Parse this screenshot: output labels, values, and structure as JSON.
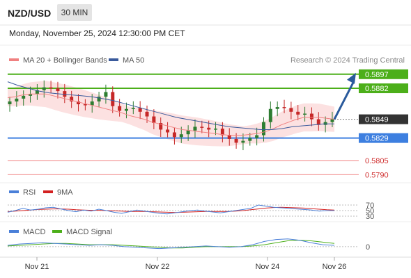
{
  "header": {
    "symbol": "NZD/USD",
    "timeframe": "30 MIN",
    "datetime": "Monday, November 25, 2024 12:30:00 PM CET"
  },
  "legend": {
    "ma20_label": "MA 20 + Bollinger Bands",
    "ma50_label": "MA 50",
    "credit": "Research © 2024 Trading Central",
    "rsi_label": "RSI",
    "rsi_ma_label": "9MA",
    "macd_label": "MACD",
    "macd_signal_label": "MACD Signal"
  },
  "colors": {
    "candle_up": "#2e7d32",
    "candle_down": "#c62828",
    "ma20": "#f08080",
    "bollinger_fill": "#fbdcdc",
    "ma50": "#3a5a9c",
    "resistance": "#4caf1a",
    "pivot": "#3d7fe0",
    "support": "#f08080",
    "current": "#333333",
    "arrow": "#2a5a9c",
    "rsi": "#4a7fd8",
    "rsi_ma": "#d32020",
    "macd": "#4a7fd8",
    "macd_signal": "#4caf1a"
  },
  "chart_data": {
    "type": "candlestick",
    "x_ticks": [
      "Nov 21",
      "Nov 22",
      "Nov 24",
      "Nov 26"
    ],
    "levels": [
      {
        "label": "0.5897",
        "value": 0.5897,
        "kind": "resistance"
      },
      {
        "label": "0.5882",
        "value": 0.5882,
        "kind": "resistance"
      },
      {
        "label": "0.5849",
        "value": 0.5849,
        "kind": "current"
      },
      {
        "label": "0.5829",
        "value": 0.5829,
        "kind": "pivot"
      },
      {
        "label": "0.5805",
        "value": 0.5805,
        "kind": "support"
      },
      {
        "label": "0.5790",
        "value": 0.579,
        "kind": "support"
      }
    ],
    "price_range": [
      0.5785,
      0.5905
    ],
    "forecast": {
      "from": 0.5849,
      "to": 0.5897,
      "direction": "up"
    },
    "close_series": [
      0.5868,
      0.5871,
      0.5874,
      0.5876,
      0.588,
      0.5883,
      0.5882,
      0.5879,
      0.5873,
      0.5868,
      0.5865,
      0.5864,
      0.5868,
      0.5873,
      0.5878,
      0.5863,
      0.5858,
      0.586,
      0.5861,
      0.5857,
      0.5852,
      0.5845,
      0.5838,
      0.5835,
      0.583,
      0.5833,
      0.5837,
      0.5841,
      0.584,
      0.5838,
      0.5839,
      0.5832,
      0.5828,
      0.5824,
      0.5826,
      0.5829,
      0.5832,
      0.5846,
      0.586,
      0.5862,
      0.5861,
      0.5857,
      0.5854,
      0.5855,
      0.5849,
      0.5843,
      0.5846,
      0.5849
    ],
    "ma20_series": [
      0.5872,
      0.5873,
      0.5875,
      0.5876,
      0.5876,
      0.5876,
      0.5874,
      0.5872,
      0.587,
      0.5868,
      0.5866,
      0.5864,
      0.5862,
      0.586,
      0.5858,
      0.5856,
      0.5853,
      0.5851,
      0.5849,
      0.5846,
      0.5844,
      0.5842,
      0.584,
      0.5838,
      0.5837,
      0.5836,
      0.5835,
      0.5834,
      0.5833,
      0.5832,
      0.5832,
      0.5832,
      0.5833,
      0.5834,
      0.5836,
      0.5839,
      0.5843,
      0.5846,
      0.5849,
      0.5851,
      0.5851,
      0.5851,
      0.585,
      0.5849
    ],
    "ma50_series": [
      0.5889,
      0.5885,
      0.5882,
      0.5879,
      0.5877,
      0.5876,
      0.5875,
      0.5874,
      0.5873,
      0.5871,
      0.5869,
      0.5866,
      0.5863,
      0.586,
      0.5857,
      0.5854,
      0.5851,
      0.5849,
      0.5847,
      0.5845,
      0.5843,
      0.5841,
      0.584,
      0.5839,
      0.5838,
      0.5838,
      0.5839,
      0.5841,
      0.5842,
      0.5843,
      0.5844,
      0.5844
    ],
    "rsi": {
      "ticks": [
        70,
        50,
        30
      ],
      "range": [
        0,
        100
      ],
      "rsi_series": [
        44,
        50,
        58,
        52,
        55,
        60,
        62,
        56,
        50,
        46,
        52,
        48,
        55,
        50,
        44,
        40,
        46,
        52,
        48,
        44,
        40,
        38,
        42,
        46,
        50,
        52,
        48,
        45,
        42,
        46,
        50,
        54,
        58,
        70,
        66,
        62,
        60,
        58,
        56,
        54,
        52,
        48,
        50,
        50
      ],
      "ma_series": [
        46,
        48,
        50,
        52,
        54,
        55,
        56,
        56,
        55,
        53,
        52,
        51,
        51,
        50,
        49,
        48,
        47,
        47,
        47,
        46,
        45,
        44,
        43,
        44,
        45,
        46,
        47,
        47,
        47,
        47,
        48,
        50,
        53,
        56,
        59,
        61,
        62,
        61,
        60,
        59,
        57,
        55,
        53,
        52
      ]
    },
    "macd": {
      "ticks": [
        0
      ],
      "range": [
        -0.0012,
        0.0016
      ],
      "macd_series": [
        0.0002,
        0.0004,
        0.0005,
        0.0006,
        0.0005,
        0.0004,
        0.0003,
        0.0002,
        0.0003,
        0.0002,
        0.0,
        -0.0001,
        -0.0002,
        -0.0003,
        -0.0002,
        -0.0001,
        0.0,
        0.0001,
        0.0,
        -0.0001,
        0.0,
        0.0003,
        0.0008,
        0.0011,
        0.0012,
        0.001,
        0.0006,
        0.0003,
        0.0002
      ],
      "signal_series": [
        0.0001,
        0.0002,
        0.0003,
        0.0004,
        0.0005,
        0.0005,
        0.0004,
        0.0003,
        0.0003,
        0.0003,
        0.0002,
        0.0001,
        0.0,
        -0.0001,
        -0.0002,
        -0.0002,
        -0.0001,
        0.0,
        0.0,
        0.0,
        0.0,
        0.0001,
        0.0003,
        0.0006,
        0.0009,
        0.001,
        0.0009,
        0.0007,
        0.0005
      ]
    }
  }
}
